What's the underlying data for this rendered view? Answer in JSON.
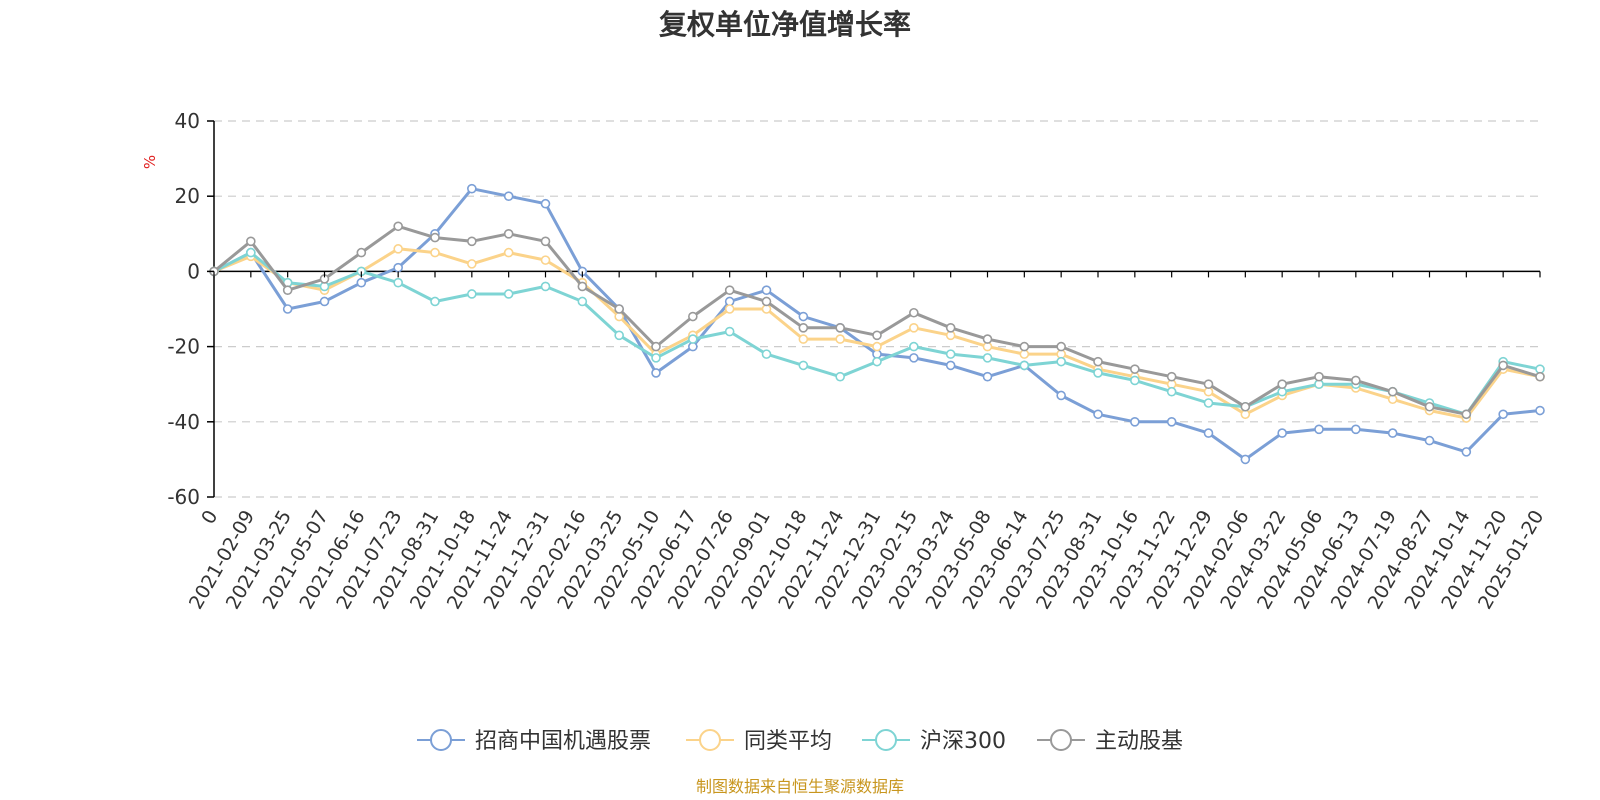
{
  "chart_data": {
    "type": "line",
    "title": "复权单位净值增长率",
    "ylabel": "%",
    "ylim": [
      -60,
      40
    ],
    "yticks": [
      40,
      20,
      0,
      -20,
      -40,
      -60
    ],
    "grid": true,
    "legend_position": "bottom",
    "x_labels": [
      "0",
      "2021-02-09",
      "2021-03-25",
      "2021-05-07",
      "2021-06-16",
      "2021-07-23",
      "2021-08-31",
      "2021-10-18",
      "2021-11-24",
      "2021-12-31",
      "2022-02-16",
      "2022-03-25",
      "2022-05-10",
      "2022-06-17",
      "2022-07-26",
      "2022-09-01",
      "2022-10-18",
      "2022-11-24",
      "2022-12-31",
      "2023-02-15",
      "2023-03-24",
      "2023-05-08",
      "2023-06-14",
      "2023-07-25",
      "2023-08-31",
      "2023-10-16",
      "2023-11-22",
      "2023-12-29",
      "2024-02-06",
      "2024-03-22",
      "2024-05-06",
      "2024-06-13",
      "2024-07-19",
      "2024-08-27",
      "2024-10-14",
      "2024-11-20",
      "2025-01-20"
    ],
    "x_index": [
      0,
      1,
      2,
      3,
      4,
      5,
      6,
      7,
      8,
      9,
      10,
      11,
      12,
      13,
      14,
      15,
      16,
      17,
      18,
      19,
      20,
      21,
      22,
      23,
      24,
      25,
      26,
      27,
      28,
      29,
      30,
      31,
      32,
      33,
      34,
      35,
      36
    ],
    "series": [
      {
        "name": "招商中国机遇股票",
        "color": "#7b9fd6",
        "values": [
          0,
          5,
          -10,
          -8,
          -3,
          1,
          10,
          22,
          20,
          18,
          0,
          -10,
          -27,
          -20,
          -8,
          -5,
          -12,
          -15,
          -22,
          -23,
          -25,
          -28,
          -25,
          -33,
          -38,
          -40,
          -40,
          -43,
          -50,
          -43,
          -42,
          -42,
          -43,
          -45,
          -48,
          -38,
          -37
        ]
      },
      {
        "name": "同类平均",
        "color": "#fbd38a",
        "values": [
          0,
          4,
          -3,
          -5,
          0,
          6,
          5,
          2,
          5,
          3,
          -3,
          -12,
          -22,
          -17,
          -10,
          -10,
          -18,
          -18,
          -20,
          -15,
          -17,
          -20,
          -22,
          -22,
          -26,
          -28,
          -30,
          -32,
          -38,
          -33,
          -30,
          -31,
          -34,
          -37,
          -39,
          -26,
          -28
        ]
      },
      {
        "name": "沪深300",
        "color": "#7ed4d4",
        "values": [
          0,
          5,
          -3,
          -4,
          0,
          -3,
          -8,
          -6,
          -6,
          -4,
          -8,
          -17,
          -23,
          -18,
          -16,
          -22,
          -25,
          -28,
          -24,
          -20,
          -22,
          -23,
          -25,
          -24,
          -27,
          -29,
          -32,
          -35,
          -36,
          -32,
          -30,
          -30,
          -32,
          -35,
          -38,
          -24,
          -26
        ]
      },
      {
        "name": "主动股基",
        "color": "#999999",
        "values": [
          0,
          8,
          -5,
          -2,
          5,
          12,
          9,
          8,
          10,
          8,
          -4,
          -10,
          -20,
          -12,
          -5,
          -8,
          -15,
          -15,
          -17,
          -11,
          -15,
          -18,
          -20,
          -20,
          -24,
          -26,
          -28,
          -30,
          -36,
          -30,
          -28,
          -29,
          -32,
          -36,
          -38,
          -25,
          -28
        ]
      }
    ],
    "source_note": "制图数据来自恒生聚源数据库"
  }
}
